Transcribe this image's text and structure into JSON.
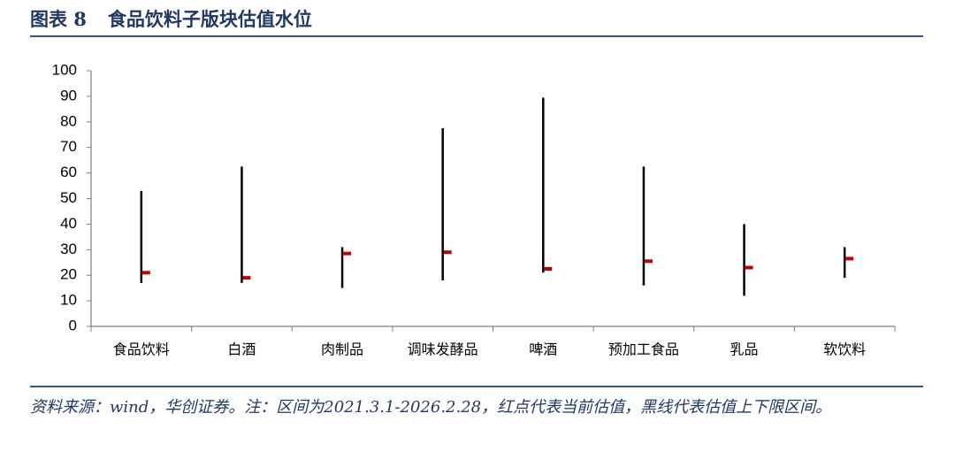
{
  "chart_data": {
    "type": "range",
    "figure_label": "图表 8",
    "title": "食品饮料子版块估值水位",
    "categories": [
      "食品饮料",
      "白酒",
      "肉制品",
      "调味发酵品",
      "啤酒",
      "预加工食品",
      "乳品",
      "软饮料"
    ],
    "low": [
      17,
      17,
      15,
      18,
      21,
      16,
      12,
      19
    ],
    "high": [
      53,
      62.5,
      31,
      77.5,
      89.5,
      62.5,
      40,
      31
    ],
    "current": [
      21,
      19,
      28.5,
      29,
      22.5,
      25.5,
      23,
      26.5
    ],
    "range_color": "#000000",
    "current_color": "#c00000",
    "ylim": [
      0,
      100
    ],
    "yticks": [
      0,
      10,
      20,
      30,
      40,
      50,
      60,
      70,
      80,
      90,
      100
    ],
    "grid": false,
    "source": "资料来源：wind，华创证券。注：区间为2021.3.1-2026.2.28，红点代表当前估值，黑线代表估值上下限区间。"
  }
}
